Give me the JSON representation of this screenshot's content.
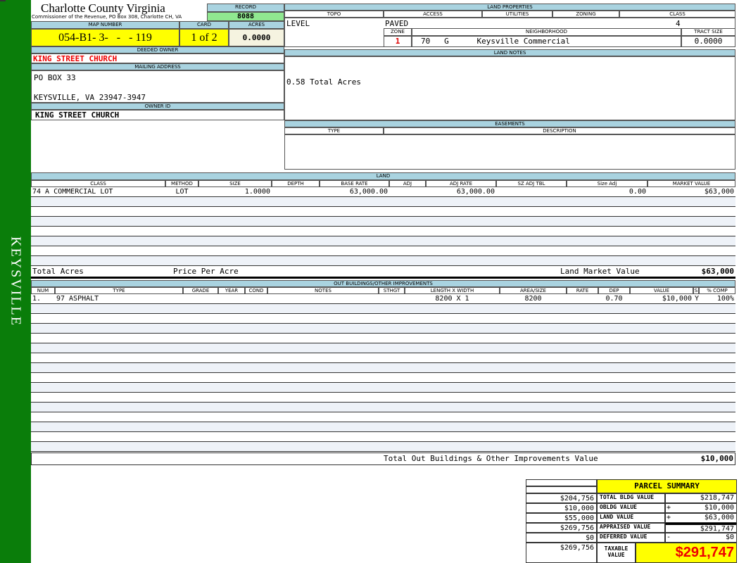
{
  "sidebar": {
    "label": "KEYSVILLE",
    "color": "#0a7d0a"
  },
  "header": {
    "title": "Charlotte County Virginia",
    "subtitle": "Commissioner of the Revenue, PO Box 308, Charlotte CH, VA",
    "record_label": "RECORD",
    "record": "8088",
    "map_label": "MAP NUMBER",
    "map_number": "054-B1- 3-   -   - 119",
    "card_label": "CARD",
    "card": "1 of 2",
    "acres_label": "ACRES",
    "acres": "0.0000"
  },
  "owner": {
    "deeded_label": "DEEDED OWNER",
    "deeded": "KING STREET CHURCH",
    "mailing_label": "MAILING ADDRESS",
    "address1": "PO BOX 33",
    "address2": "KEYSVILLE, VA 23947-3947",
    "owner_id_label": "OWNER ID",
    "owner_id": "KING STREET CHURCH"
  },
  "land_properties": {
    "title": "LAND PROPERTIES",
    "topo_label": "TOPO",
    "access_label": "ACCESS",
    "utilities_label": "UTILITIES",
    "zoning_label": "ZONING",
    "class_label": "CLASS",
    "topo": "LEVEL",
    "access": "PAVED",
    "class": "4",
    "zone_label": "ZONE",
    "neighborhood_label": "NEIGHBORHOOD",
    "tract_label": "TRACT SIZE",
    "zone": "1",
    "neighborhood": "70   G      Keysville Commercial",
    "tract": "0.0000"
  },
  "land_notes": {
    "title": "LAND NOTES",
    "text": "0.58 Total Acres"
  },
  "easements": {
    "title": "EASEMENTS",
    "type_label": "TYPE",
    "description_label": "DESCRIPTION"
  },
  "land": {
    "title": "LAND",
    "columns": [
      "CLASS",
      "METHOD",
      "SIZE",
      "DEPTH",
      "BASE RATE",
      "ADJ",
      "ADJ RATE",
      "SZ ADJ TBL",
      "Size Adj",
      "MARKET VALUE"
    ],
    "rows": [
      [
        "74 A COMMERCIAL LOT",
        "LOT",
        "1.0000",
        "",
        "63,000.00",
        "",
        "63,000.00",
        "",
        "0.00",
        "$63,000"
      ]
    ],
    "total_acres_label": "Total Acres",
    "price_per_acre_label": "Price Per Acre",
    "market_value_label": "Land Market Value",
    "market_value": "$63,000"
  },
  "outbuildings": {
    "title": "OUT BUILDINGS/OTHER IMPROVEMENTS",
    "columns": [
      "NUM",
      "TYPE",
      "GRADE",
      "YEAR",
      "COND",
      "NOTES",
      "STHGT",
      "LENGTH X WIDTH",
      "AREA/SIZE",
      "RATE",
      "DEP",
      "VALUE",
      "S",
      "% COMP"
    ],
    "rows": [
      [
        "1.",
        "97 ASPHALT",
        "",
        "",
        "",
        "",
        "",
        "8200 X 1",
        "8200",
        "",
        "0.70",
        "$10,000",
        "Y",
        "100%"
      ]
    ],
    "total_label": "Total Out Buildings & Other Improvements Value",
    "total": "$10,000"
  },
  "summary": {
    "title": "PARCEL SUMMARY",
    "prior": [
      "$204,756",
      "$10,000",
      "$55,000",
      "$269,756",
      "$0",
      "$269,756"
    ],
    "labels": [
      "TOTAL BLDG VALUE",
      "OBLDG VALUE",
      "LAND VALUE",
      "APPRAISED VALUE",
      "DEFERRED VALUE"
    ],
    "ops": [
      "",
      "+",
      "+",
      "",
      "-"
    ],
    "values": [
      "$218,747",
      "$10,000",
      "$63,000",
      "$291,747",
      "$0"
    ],
    "taxable_label": "TAXABLE VALUE",
    "taxable": "$291,747"
  }
}
